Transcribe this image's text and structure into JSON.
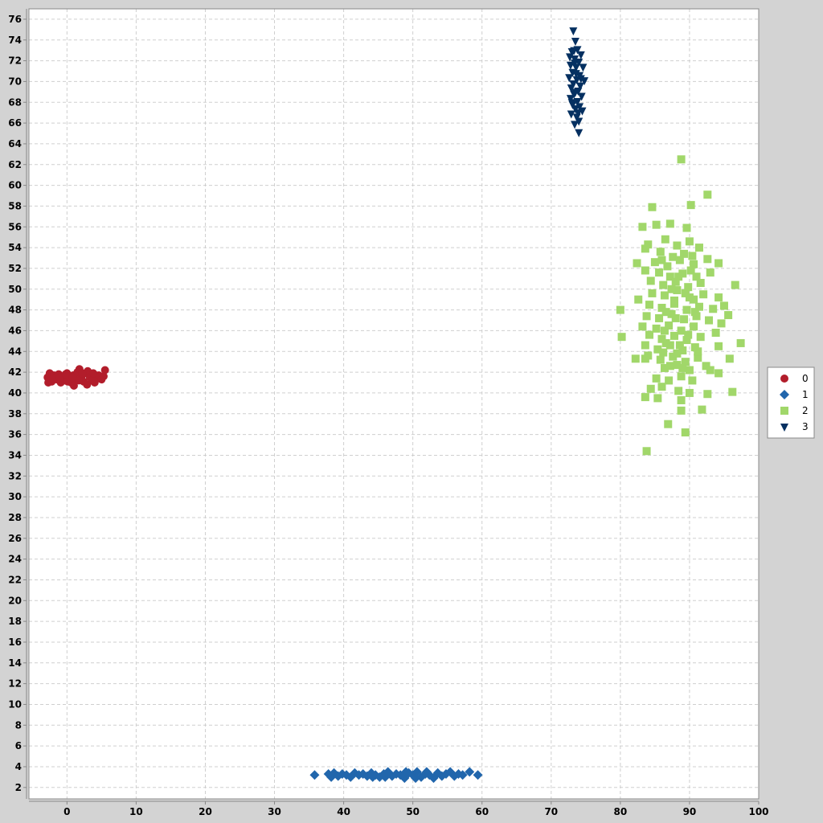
{
  "chart_data": {
    "type": "scatter",
    "title": "",
    "xlabel": "",
    "ylabel": "",
    "xlim": [
      -5.5,
      100
    ],
    "ylim": [
      0.9,
      77
    ],
    "x_ticks": [
      0,
      10,
      20,
      30,
      40,
      50,
      60,
      70,
      80,
      90,
      100
    ],
    "y_ticks": [
      2,
      4,
      6,
      8,
      10,
      12,
      14,
      16,
      18,
      20,
      22,
      24,
      26,
      28,
      30,
      32,
      34,
      36,
      38,
      40,
      42,
      44,
      46,
      48,
      50,
      52,
      54,
      56,
      58,
      60,
      62,
      64,
      66,
      68,
      70,
      72,
      74,
      76
    ],
    "grid": true,
    "legend_position": "right",
    "series": [
      {
        "name": "0",
        "marker": "circle",
        "color": "#b21d2b",
        "points": [
          [
            -2.8,
            41.5
          ],
          [
            -2.5,
            41.9
          ],
          [
            -2.2,
            41.1
          ],
          [
            -1.9,
            41.7
          ],
          [
            -1.5,
            41.3
          ],
          [
            -1.2,
            41.8
          ],
          [
            -0.9,
            41.0
          ],
          [
            -0.6,
            41.6
          ],
          [
            -0.3,
            41.2
          ],
          [
            0.0,
            41.9
          ],
          [
            0.3,
            41.4
          ],
          [
            0.6,
            41.0
          ],
          [
            0.9,
            41.7
          ],
          [
            1.2,
            41.3
          ],
          [
            1.5,
            42.0
          ],
          [
            1.8,
            42.3
          ],
          [
            2.1,
            41.6
          ],
          [
            2.4,
            41.1
          ],
          [
            2.7,
            41.9
          ],
          [
            3.0,
            42.1
          ],
          [
            3.3,
            41.5
          ],
          [
            3.6,
            41.2
          ],
          [
            3.9,
            41.8
          ],
          [
            4.2,
            41.4
          ],
          [
            4.6,
            41.7
          ],
          [
            5.0,
            41.3
          ],
          [
            5.3,
            41.6
          ],
          [
            5.5,
            42.2
          ],
          [
            -2.7,
            41.0
          ],
          [
            -2.0,
            41.4
          ],
          [
            -1.0,
            41.5
          ],
          [
            0.1,
            41.1
          ],
          [
            0.8,
            41.5
          ],
          [
            1.7,
            41.2
          ],
          [
            2.9,
            40.8
          ],
          [
            3.8,
            41.9
          ],
          [
            1.0,
            40.7
          ],
          [
            -0.2,
            41.8
          ],
          [
            2.2,
            41.9
          ],
          [
            4.0,
            41.0
          ]
        ]
      },
      {
        "name": "1",
        "marker": "diamond",
        "color": "#2166ac",
        "points": [
          [
            35.8,
            3.2
          ],
          [
            37.8,
            3.3
          ],
          [
            38.2,
            3.0
          ],
          [
            38.6,
            3.4
          ],
          [
            39.2,
            3.1
          ],
          [
            39.8,
            3.3
          ],
          [
            40.4,
            3.2
          ],
          [
            41.0,
            3.0
          ],
          [
            41.6,
            3.4
          ],
          [
            42.2,
            3.2
          ],
          [
            42.8,
            3.3
          ],
          [
            43.4,
            3.1
          ],
          [
            44.0,
            3.4
          ],
          [
            44.6,
            3.2
          ],
          [
            45.2,
            3.0
          ],
          [
            45.8,
            3.3
          ],
          [
            46.4,
            3.5
          ],
          [
            47.0,
            3.1
          ],
          [
            47.6,
            3.3
          ],
          [
            48.2,
            3.2
          ],
          [
            48.8,
            2.9
          ],
          [
            49.4,
            3.4
          ],
          [
            50.0,
            3.2
          ],
          [
            50.6,
            3.5
          ],
          [
            51.2,
            3.0
          ],
          [
            51.8,
            3.3
          ],
          [
            52.4,
            3.2
          ],
          [
            53.0,
            2.9
          ],
          [
            53.6,
            3.4
          ],
          [
            54.2,
            3.1
          ],
          [
            54.8,
            3.3
          ],
          [
            55.4,
            3.5
          ],
          [
            56.0,
            3.1
          ],
          [
            56.6,
            3.3
          ],
          [
            57.2,
            3.2
          ],
          [
            58.2,
            3.5
          ],
          [
            59.4,
            3.2
          ],
          [
            46.0,
            3.0
          ],
          [
            49.0,
            3.5
          ],
          [
            52.0,
            3.5
          ],
          [
            50.4,
            2.9
          ],
          [
            44.2,
            3.0
          ]
        ]
      },
      {
        "name": "2",
        "marker": "square",
        "color": "#a1d76a",
        "points": [
          [
            88.8,
            62.5
          ],
          [
            92.6,
            59.1
          ],
          [
            90.2,
            58.1
          ],
          [
            84.6,
            57.9
          ],
          [
            83.2,
            56.0
          ],
          [
            85.2,
            56.2
          ],
          [
            87.2,
            56.3
          ],
          [
            89.6,
            55.9
          ],
          [
            84.0,
            54.3
          ],
          [
            86.5,
            54.8
          ],
          [
            88.2,
            54.2
          ],
          [
            90.0,
            54.6
          ],
          [
            91.4,
            54.0
          ],
          [
            83.6,
            53.9
          ],
          [
            85.8,
            53.6
          ],
          [
            87.6,
            53.1
          ],
          [
            89.2,
            53.4
          ],
          [
            82.4,
            52.5
          ],
          [
            85.0,
            52.6
          ],
          [
            86.8,
            52.2
          ],
          [
            88.6,
            52.8
          ],
          [
            90.6,
            52.4
          ],
          [
            92.6,
            52.9
          ],
          [
            94.2,
            52.5
          ],
          [
            83.6,
            51.8
          ],
          [
            85.6,
            51.6
          ],
          [
            87.2,
            51.2
          ],
          [
            89.0,
            51.5
          ],
          [
            91.0,
            51.2
          ],
          [
            93.0,
            51.6
          ],
          [
            84.4,
            50.8
          ],
          [
            86.2,
            50.4
          ],
          [
            88.0,
            50.7
          ],
          [
            89.8,
            50.2
          ],
          [
            91.6,
            50.6
          ],
          [
            96.6,
            50.4
          ],
          [
            84.6,
            49.6
          ],
          [
            86.4,
            49.4
          ],
          [
            88.2,
            49.9
          ],
          [
            90.0,
            49.2
          ],
          [
            92.0,
            49.5
          ],
          [
            94.2,
            49.2
          ],
          [
            82.6,
            49.0
          ],
          [
            84.2,
            48.5
          ],
          [
            86.0,
            48.2
          ],
          [
            87.8,
            48.6
          ],
          [
            89.6,
            48.0
          ],
          [
            91.4,
            48.3
          ],
          [
            93.4,
            48.1
          ],
          [
            95.0,
            48.4
          ],
          [
            80.0,
            48.0
          ],
          [
            83.8,
            47.4
          ],
          [
            85.6,
            47.2
          ],
          [
            87.4,
            47.6
          ],
          [
            89.2,
            47.1
          ],
          [
            91.0,
            47.4
          ],
          [
            92.8,
            47.0
          ],
          [
            95.6,
            47.5
          ],
          [
            83.2,
            46.4
          ],
          [
            85.2,
            46.2
          ],
          [
            87.0,
            46.5
          ],
          [
            88.8,
            46.0
          ],
          [
            90.6,
            46.4
          ],
          [
            94.6,
            46.7
          ],
          [
            84.2,
            45.6
          ],
          [
            86.0,
            45.2
          ],
          [
            87.8,
            45.5
          ],
          [
            89.6,
            45.1
          ],
          [
            91.6,
            45.4
          ],
          [
            93.8,
            45.8
          ],
          [
            80.2,
            45.4
          ],
          [
            83.6,
            44.6
          ],
          [
            85.4,
            44.2
          ],
          [
            87.2,
            44.6
          ],
          [
            89.0,
            44.1
          ],
          [
            90.8,
            44.4
          ],
          [
            94.2,
            44.5
          ],
          [
            97.4,
            44.8
          ],
          [
            84.0,
            43.6
          ],
          [
            85.8,
            43.2
          ],
          [
            87.6,
            43.5
          ],
          [
            89.4,
            43.0
          ],
          [
            91.2,
            43.4
          ],
          [
            95.8,
            43.3
          ],
          [
            82.2,
            43.3
          ],
          [
            83.6,
            43.3
          ],
          [
            86.4,
            42.4
          ],
          [
            88.2,
            42.7
          ],
          [
            90.0,
            42.2
          ],
          [
            92.4,
            42.6
          ],
          [
            93.0,
            42.2
          ],
          [
            85.2,
            41.4
          ],
          [
            87.0,
            41.2
          ],
          [
            88.8,
            41.6
          ],
          [
            90.4,
            41.2
          ],
          [
            94.2,
            41.9
          ],
          [
            84.4,
            40.4
          ],
          [
            86.0,
            40.6
          ],
          [
            88.4,
            40.2
          ],
          [
            90.0,
            40.0
          ],
          [
            92.6,
            39.9
          ],
          [
            96.2,
            40.1
          ],
          [
            83.6,
            39.6
          ],
          [
            85.4,
            39.5
          ],
          [
            88.8,
            39.3
          ],
          [
            91.8,
            38.4
          ],
          [
            88.8,
            38.3
          ],
          [
            86.9,
            37.0
          ],
          [
            89.4,
            36.2
          ],
          [
            83.8,
            34.4
          ],
          [
            86.6,
            47.8
          ],
          [
            88.0,
            47.2
          ],
          [
            87.4,
            50.0
          ],
          [
            89.4,
            49.6
          ],
          [
            86.6,
            44.8
          ],
          [
            88.6,
            44.6
          ],
          [
            87.2,
            42.6
          ],
          [
            89.0,
            42.4
          ],
          [
            90.4,
            53.2
          ],
          [
            86.0,
            52.8
          ],
          [
            88.4,
            51.2
          ],
          [
            90.2,
            51.8
          ],
          [
            87.8,
            48.9
          ],
          [
            86.4,
            46.0
          ],
          [
            90.8,
            47.8
          ],
          [
            89.8,
            45.6
          ],
          [
            88.2,
            43.8
          ],
          [
            86.2,
            43.9
          ],
          [
            91.2,
            44.0
          ],
          [
            90.6,
            49.0
          ]
        ]
      },
      {
        "name": "3",
        "marker": "triangle-down",
        "color": "#053061",
        "points": [
          [
            73.2,
            74.9
          ],
          [
            73.5,
            73.9
          ],
          [
            73.0,
            72.9
          ],
          [
            73.8,
            73.1
          ],
          [
            74.3,
            72.6
          ],
          [
            72.7,
            72.4
          ],
          [
            73.4,
            72.2
          ],
          [
            74.0,
            71.9
          ],
          [
            72.8,
            71.6
          ],
          [
            73.6,
            71.4
          ],
          [
            74.6,
            71.4
          ],
          [
            73.1,
            70.9
          ],
          [
            74.1,
            70.6
          ],
          [
            72.6,
            70.4
          ],
          [
            73.7,
            70.2
          ],
          [
            74.8,
            70.1
          ],
          [
            73.2,
            69.8
          ],
          [
            74.2,
            69.6
          ],
          [
            72.9,
            69.4
          ],
          [
            73.9,
            69.1
          ],
          [
            73.3,
            68.8
          ],
          [
            74.4,
            68.6
          ],
          [
            72.8,
            68.4
          ],
          [
            73.8,
            68.1
          ],
          [
            73.1,
            67.8
          ],
          [
            74.1,
            67.6
          ],
          [
            73.5,
            67.4
          ],
          [
            74.5,
            67.2
          ],
          [
            72.9,
            66.9
          ],
          [
            73.7,
            66.6
          ],
          [
            74.0,
            66.2
          ],
          [
            73.4,
            65.9
          ],
          [
            74.0,
            65.1
          ],
          [
            73.3,
            73.0
          ],
          [
            73.6,
            70.8
          ],
          [
            73.5,
            69.0
          ],
          [
            73.0,
            68.0
          ],
          [
            73.9,
            67.0
          ],
          [
            73.4,
            71.8
          ],
          [
            74.3,
            70.3
          ]
        ]
      }
    ]
  }
}
